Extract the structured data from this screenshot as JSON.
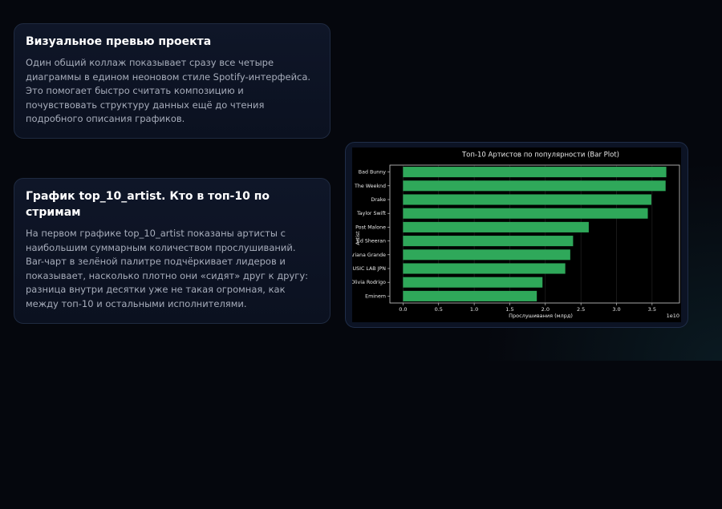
{
  "cards": [
    {
      "title": "Визуальное превью проекта",
      "body": "Один общий коллаж показывает сразу все четыре диаграммы в едином неоновом стиле Spotify-интерфейса. Это помогает быстро считать композицию и почувствовать структуру данных ещё до чтения подробного описания графиков."
    },
    {
      "title": "График top_10_artist. Кто в топ-10 по стримам",
      "body": "На первом графике top_10_artist показаны артисты с наибольшим суммарным количеством прослушиваний. Bar-чарт в зелёной палитре подчёркивает лидеров и показывает, насколько плотно они «сидят» друг к другу: разница внутри десятки уже не такая огромная, как между топ-10 и остальными исполнителями."
    }
  ],
  "chart_data": {
    "type": "barh",
    "title": "Топ-10 Артистов по популярности (Bar Plot)",
    "x_label": "Прослушивания (млрд)",
    "y_label": "Artist",
    "x_offset_label": "1e10",
    "categories": [
      "Bad Bunny",
      "The Weeknd",
      "Drake",
      "Taylor Swift",
      "Post Malone",
      "Ed Sheeran",
      "Ariana Grande",
      "MUSIC LAB JPN",
      "Olivia Rodrigo",
      "Eminem"
    ],
    "values": [
      3.7,
      3.69,
      3.49,
      3.44,
      2.61,
      2.39,
      2.35,
      2.28,
      1.96,
      1.88
    ],
    "color": "#2fa85a",
    "xlim": [
      -0.185,
      3.885
    ],
    "xticks": [
      {
        "value": 0,
        "label": "0.0"
      },
      0.5,
      {
        "value": 1,
        "label": "1.0"
      },
      1.5,
      {
        "value": 2,
        "label": "2.0"
      },
      2.5,
      {
        "value": 3,
        "label": "3.0"
      },
      3.5
    ],
    "grid": true
  }
}
